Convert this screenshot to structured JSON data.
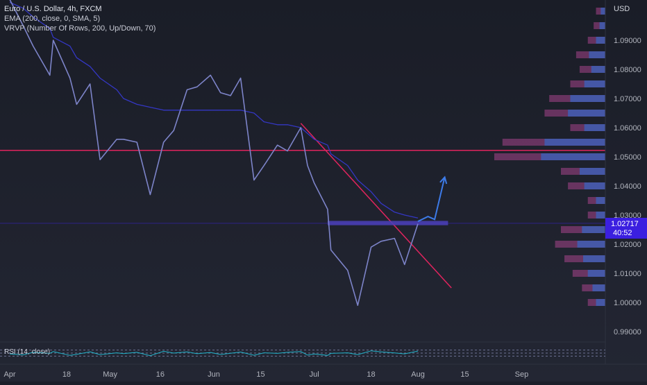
{
  "colors": {
    "background": "#1c1f2a",
    "price_line": "#7d84c9",
    "ema_line": "#3437c4",
    "support_line": "#e0245e",
    "trendline": "#e0245e",
    "resistance_zone": "#4b3fb8",
    "arrow": "#3d7be8",
    "price_badge": "#3b1fe0",
    "rsi_line": "#22b5cc",
    "axis_text": "#b2b5be",
    "vp_up": "#2f6fd6",
    "vp_down": "#c44ba0"
  },
  "legend": {
    "title": "Euro / U.S. Dollar, 4h, FXCM",
    "ema": "EMA (200, close, 0, SMA, 5)",
    "vrvp": "VRVP (Number Of Rows, 200, Up/Down, 70)",
    "rsi": "RSI (14, close)"
  },
  "price_axis": {
    "currency": "USD",
    "current_price": "1.02717",
    "countdown": "40:52"
  },
  "chart_data": {
    "type": "line",
    "title": "Euro / U.S. Dollar, 4h, FXCM",
    "y_unit": "USD",
    "ylim": [
      0.987,
      1.103
    ],
    "y_ticks": [
      "1.09000",
      "1.08000",
      "1.07000",
      "1.06000",
      "1.05000",
      "1.04000",
      "1.03000",
      "1.02000",
      "1.01000",
      "1.00000",
      "0.99000"
    ],
    "x_ticks": [
      "Apr",
      "18",
      "May",
      "16",
      "Jun",
      "15",
      "Jul",
      "18",
      "Aug",
      "15",
      "Sep"
    ],
    "x": [
      "2022-04-01",
      "2022-04-05",
      "2022-04-08",
      "2022-04-13",
      "2022-04-14",
      "2022-04-19",
      "2022-04-21",
      "2022-04-25",
      "2022-04-28",
      "2022-05-03",
      "2022-05-05",
      "2022-05-09",
      "2022-05-13",
      "2022-05-17",
      "2022-05-20",
      "2022-05-24",
      "2022-05-27",
      "2022-05-31",
      "2022-06-03",
      "2022-06-06",
      "2022-06-09",
      "2022-06-13",
      "2022-06-16",
      "2022-06-20",
      "2022-06-23",
      "2022-06-27",
      "2022-06-29",
      "2022-07-01",
      "2022-07-05",
      "2022-07-06",
      "2022-07-11",
      "2022-07-14",
      "2022-07-18",
      "2022-07-21",
      "2022-07-25",
      "2022-07-28",
      "2022-08-01"
    ],
    "series": [
      {
        "values": [
          1.104,
          1.095,
          1.088,
          1.078,
          1.09,
          1.077,
          1.068,
          1.075,
          1.049,
          1.056,
          1.056,
          1.055,
          1.037,
          1.055,
          1.059,
          1.073,
          1.074,
          1.078,
          1.072,
          1.071,
          1.077,
          1.042,
          1.047,
          1.054,
          1.052,
          1.06,
          1.047,
          1.041,
          1.032,
          1.018,
          1.011,
          0.999,
          1.019,
          1.021,
          1.022,
          1.013,
          1.027
        ]
      },
      {
        "values": [
          1.103,
          1.101,
          1.098,
          1.094,
          1.091,
          1.088,
          1.084,
          1.081,
          1.077,
          1.073,
          1.07,
          1.068,
          1.067,
          1.066,
          1.066,
          1.066,
          1.066,
          1.066,
          1.066,
          1.066,
          1.066,
          1.065,
          1.062,
          1.061,
          1.061,
          1.06,
          1.058,
          1.056,
          1.054,
          1.051,
          1.047,
          1.042,
          1.038,
          1.034,
          1.031,
          1.03,
          1.029
        ]
      }
    ],
    "horizontal_levels": [
      1.0522
    ],
    "resistance_zone": [
      1.0265,
      1.028
    ],
    "trendline": {
      "from": [
        "2022-06-27",
        1.0615
      ],
      "to": [
        "2022-08-11",
        1.005
      ]
    },
    "projection_arrow": [
      [
        "2022-08-01",
        1.0278
      ],
      [
        "2022-08-04",
        1.0295
      ],
      [
        "2022-08-06",
        1.0285
      ],
      [
        "2022-08-09",
        1.043
      ]
    ],
    "volume_profile": {
      "price_levels": [
        1.0,
        1.005,
        1.01,
        1.015,
        1.02,
        1.025,
        1.03,
        1.035,
        1.04,
        1.045,
        1.05,
        1.055,
        1.06,
        1.065,
        1.07,
        1.075,
        1.08,
        1.085,
        1.09,
        1.095,
        1.1
      ],
      "total": [
        15,
        20,
        28,
        35,
        43,
        38,
        15,
        15,
        32,
        38,
        95,
        88,
        30,
        52,
        48,
        30,
        22,
        25,
        15,
        10,
        8
      ],
      "up": [
        8,
        11,
        15,
        19,
        24,
        20,
        8,
        8,
        18,
        22,
        55,
        52,
        18,
        32,
        30,
        18,
        12,
        14,
        8,
        5,
        4
      ]
    },
    "rsi": {
      "ylim": [
        0,
        100
      ],
      "values": [
        45,
        38,
        55,
        48,
        60,
        35,
        42,
        58,
        40,
        52,
        47,
        55,
        33,
        62,
        50,
        58,
        46,
        54,
        41,
        49,
        57,
        36,
        52,
        48,
        55,
        60,
        37,
        44,
        35,
        48,
        52,
        40,
        65,
        58,
        51,
        45,
        63
      ]
    }
  }
}
